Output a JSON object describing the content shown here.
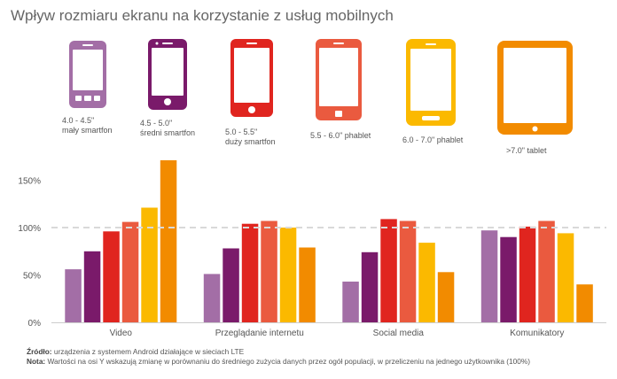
{
  "title": "Wpływ rozmiaru ekranu na korzystanie z usług mobilnych",
  "devices": [
    {
      "size": "4.0 - 4.5\"",
      "name": "mały smartfon",
      "color": "#a36ea6",
      "icon": "small-smartphone-icon"
    },
    {
      "size": "4.5 - 5.0\"",
      "name": "średni smartfon",
      "color": "#7a1a6a",
      "icon": "medium-smartphone-icon"
    },
    {
      "size": "5.0 - 5.5\"",
      "name": "duży smartfon",
      "color": "#e0251f",
      "icon": "large-smartphone-icon"
    },
    {
      "size": "5.5 - 6.0\" phablet",
      "name": "",
      "color": "#ea5a3f",
      "icon": "phablet-small-icon"
    },
    {
      "size": "6.0 - 7.0\" phablet",
      "name": "",
      "color": "#fbb900",
      "icon": "phablet-large-icon"
    },
    {
      "size": ">7.0\" tablet",
      "name": "",
      "color": "#f28b00",
      "icon": "tablet-icon"
    }
  ],
  "chart_data": {
    "type": "bar",
    "categories": [
      "Video",
      "Przeglądanie internetu",
      "Social media",
      "Komunikatory"
    ],
    "series": [
      {
        "name": "4.0 - 4.5\" mały smartfon",
        "color": "#a36ea6",
        "values": [
          56,
          51,
          43,
          97
        ]
      },
      {
        "name": "4.5 - 5.0\" średni smartfon",
        "color": "#7a1a6a",
        "values": [
          75,
          78,
          74,
          90
        ]
      },
      {
        "name": "5.0 - 5.5\" duży smartfon",
        "color": "#e0251f",
        "values": [
          96,
          104,
          109,
          101
        ]
      },
      {
        "name": "5.5 - 6.0\" phablet",
        "color": "#ea5a3f",
        "values": [
          106,
          107,
          107,
          107
        ]
      },
      {
        "name": "6.0 - 7.0\" phablet",
        "color": "#fbb900",
        "values": [
          121,
          100,
          84,
          94
        ]
      },
      {
        "name": ">7.0\" tablet",
        "color": "#f28b00",
        "values": [
          171,
          79,
          53,
          40
        ]
      }
    ],
    "ylim": [
      0,
      175
    ],
    "yticks": [
      0,
      50,
      100,
      150
    ],
    "ytick_labels": [
      "0%",
      "50%",
      "100%",
      "150%"
    ],
    "reference_line": 100,
    "xlabel": "",
    "ylabel": "",
    "grid": false
  },
  "footer": {
    "source_label": "Źródło:",
    "source_text": " urządzenia z systemem Android działające w sieciach LTE",
    "note_label": "Nota:",
    "note_text": " Wartości na osi Y wskazują zmianę w porównaniu do średniego zużycia danych przez ogół populacji, w przeliczeniu na jednego użytkownika  (100%)"
  }
}
